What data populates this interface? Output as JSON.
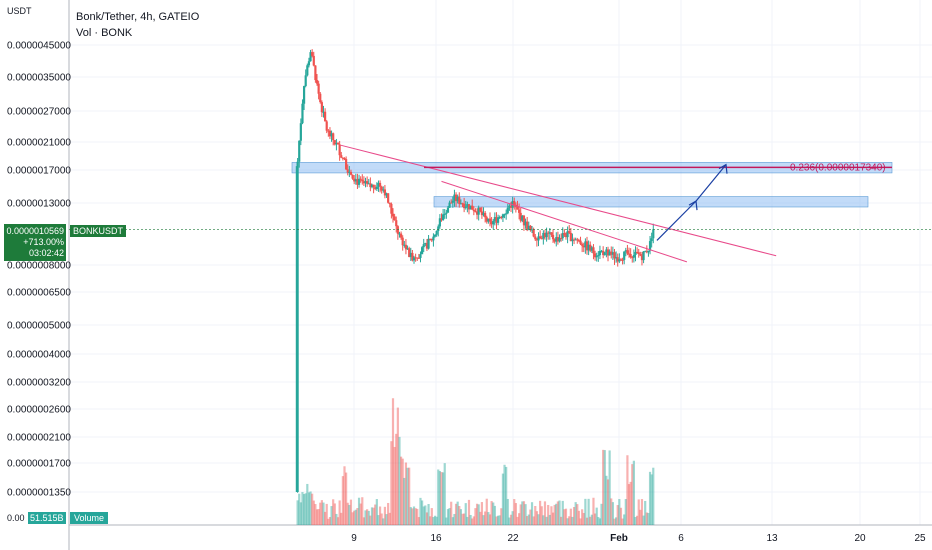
{
  "header": {
    "units": "USDT",
    "title": "Bonk/Tether, 4h, GATEIO",
    "subtitle": "Vol · BONK"
  },
  "badges": {
    "price": "0.0000010569",
    "change": "+713.00%",
    "countdown": "03:02:42",
    "symbol": "BONKUSDT",
    "volume_value": "51.515B",
    "volume_label": "Volume",
    "zero_tick": "0.00"
  },
  "colors": {
    "up": "#26a69a",
    "down": "#ef5350",
    "price_badge": "#1e7b3a",
    "zone": "#90bdf2",
    "trendline": "#e84a8a",
    "fib_line": "#c2185b",
    "arrow": "#1a3fa3"
  },
  "chart_data": {
    "type": "candlestick",
    "title": "Bonk/Tether, 4h, GATEIO",
    "y_scale": "log",
    "y_tick_labels": [
      "0.0000045000",
      "0.0000035000",
      "0.0000027000",
      "0.0000021000",
      "0.0000017000",
      "0.0000013000",
      "0.0000008000",
      "0.0000006500",
      "0.0000005000",
      "0.0000004000",
      "0.0000003200",
      "0.0000002600",
      "0.0000002100",
      "0.0000001700",
      "0.0000001350"
    ],
    "y_tick_values": [
      4.5e-06,
      3.5e-06,
      2.7e-06,
      2.1e-06,
      1.7e-06,
      1.3e-06,
      8e-07,
      6.5e-07,
      5e-07,
      4e-07,
      3.2e-07,
      2.6e-07,
      2.1e-07,
      1.7e-07,
      1.35e-07
    ],
    "x_tick_labels": [
      "9",
      "16",
      "22",
      "Feb",
      "6",
      "13",
      "20",
      "25"
    ],
    "price_path": [
      {
        "day": 0,
        "price": 1.35e-07
      },
      {
        "day": 0.1,
        "price": 1.7e-06
      },
      {
        "day": 0.8,
        "price": 3.3e-06
      },
      {
        "day": 1.5,
        "price": 4.3e-06
      },
      {
        "day": 2.4,
        "price": 3e-06
      },
      {
        "day": 3.2,
        "price": 2.3e-06
      },
      {
        "day": 4.4,
        "price": 2e-06
      },
      {
        "day": 5.2,
        "price": 1.75e-06
      },
      {
        "day": 6.3,
        "price": 1.55e-06
      },
      {
        "day": 7.6,
        "price": 1.48e-06
      },
      {
        "day": 8.5,
        "price": 1.52e-06
      },
      {
        "day": 9.1,
        "price": 1.45e-06
      },
      {
        "day": 10.4,
        "price": 1.05e-06
      },
      {
        "day": 11.8,
        "price": 8.5e-07
      },
      {
        "day": 12.8,
        "price": 8.8e-07
      },
      {
        "day": 14.2,
        "price": 1e-06
      },
      {
        "day": 15.2,
        "price": 1.2e-06
      },
      {
        "day": 16.3,
        "price": 1.35e-06
      },
      {
        "day": 17.6,
        "price": 1.28e-06
      },
      {
        "day": 18.8,
        "price": 1.22e-06
      },
      {
        "day": 20.0,
        "price": 1.1e-06
      },
      {
        "day": 21.3,
        "price": 1.2e-06
      },
      {
        "day": 22.3,
        "price": 1.3e-06
      },
      {
        "day": 23.5,
        "price": 1.12e-06
      },
      {
        "day": 24.6,
        "price": 1e-06
      },
      {
        "day": 25.6,
        "price": 1.02e-06
      },
      {
        "day": 26.8,
        "price": 9.8e-07
      },
      {
        "day": 27.8,
        "price": 1.02e-06
      },
      {
        "day": 29.3,
        "price": 9.6e-07
      },
      {
        "day": 30.8,
        "price": 8.8e-07
      },
      {
        "day": 31.8,
        "price": 8.9e-07
      },
      {
        "day": 33.1,
        "price": 8.5e-07
      },
      {
        "day": 34.5,
        "price": 8.8e-07
      },
      {
        "day": 35.7,
        "price": 8.6e-07
      },
      {
        "day": 36.4,
        "price": 9.2e-07
      },
      {
        "day": 36.9,
        "price": 1.05e-06
      }
    ],
    "volume_note": "relative volume bars under price",
    "annotations": {
      "fib_label": "0.236(0.0000017340)",
      "fib_level": 1.734e-06,
      "zone_upper": [
        1.66e-06,
        1.8e-06
      ],
      "zone_lower": [
        1.26e-06,
        1.37e-06
      ]
    }
  }
}
